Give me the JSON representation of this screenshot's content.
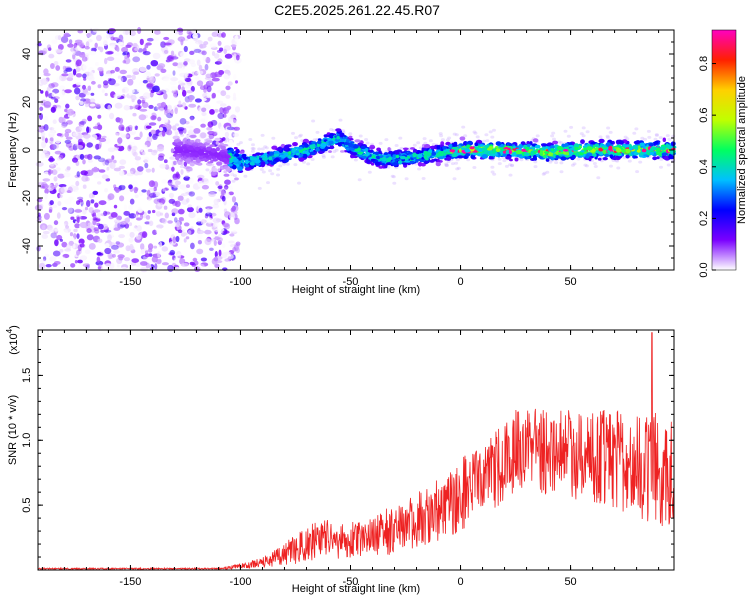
{
  "title": "C2E5.2025.261.22.45.R07",
  "chart_data": [
    {
      "type": "heatmap",
      "xlabel": "Height of straight line (km)",
      "ylabel": "Frequency (Hz)",
      "xlim": [
        -192,
        97
      ],
      "ylim": [
        -50,
        50
      ],
      "xticks": [
        -150,
        -100,
        -50,
        0,
        50
      ],
      "xtick_labels": [
        "-150",
        "-100",
        "-50",
        "0",
        "50"
      ],
      "yticks": [
        -40,
        -20,
        0,
        20,
        40
      ],
      "ytick_labels": [
        "-40",
        "-20",
        "0",
        "20",
        "40"
      ],
      "description_of_structure": {
        "noise_region_x": [
          -192,
          -103
        ],
        "signal_track": [
          {
            "x": -128,
            "f": 0
          },
          {
            "x": -110,
            "f": -2
          },
          {
            "x": -100,
            "f": -5
          },
          {
            "x": -85,
            "f": -3
          },
          {
            "x": -70,
            "f": 0
          },
          {
            "x": -55,
            "f": 5
          },
          {
            "x": -48,
            "f": 0
          },
          {
            "x": -35,
            "f": -4
          },
          {
            "x": -20,
            "f": -3
          },
          {
            "x": 0,
            "f": 0
          },
          {
            "x": 20,
            "f": 0
          },
          {
            "x": 40,
            "f": -1
          },
          {
            "x": 60,
            "f": 0
          },
          {
            "x": 97,
            "f": 0
          }
        ],
        "peak_amplitude_region_x": [
          -5,
          97
        ]
      },
      "colorbar": {
        "label": "Normalized spectral amplitude",
        "range": [
          0.0,
          0.93
        ],
        "ticks": [
          0.0,
          0.2,
          0.4,
          0.6,
          0.8
        ],
        "tick_labels": [
          "0.0",
          "0.2",
          "0.4",
          "0.6",
          "0.8"
        ],
        "colors": [
          "#ffffff",
          "#7a00ff",
          "#0000ff",
          "#00c0ff",
          "#00ff60",
          "#c0ff00",
          "#ffd000",
          "#ff2000",
          "#ff00c0"
        ]
      }
    },
    {
      "type": "line",
      "xlabel": "Height of straight line (km)",
      "ylabel": "SNR (10 * v/v)",
      "scale_label": "(x10",
      "scale_exponent": "4",
      "scale_close": ")",
      "xlim": [
        -192,
        97
      ],
      "ylim": [
        0,
        1.85
      ],
      "xticks": [
        -150,
        -100,
        -50,
        0,
        50
      ],
      "xtick_labels": [
        "-150",
        "-100",
        "-50",
        "0",
        "50"
      ],
      "yticks": [
        0.5,
        1.0,
        1.5
      ],
      "ytick_labels": [
        "0.5",
        "1.0",
        "1.5"
      ],
      "color": "#ee2222",
      "envelope": {
        "x": [
          -192,
          -110,
          -100,
          -90,
          -80,
          -70,
          -60,
          -50,
          -40,
          -30,
          -20,
          -10,
          0,
          10,
          20,
          30,
          40,
          50,
          60,
          70,
          80,
          90,
          97
        ],
        "mean": [
          0.01,
          0.01,
          0.03,
          0.06,
          0.12,
          0.2,
          0.25,
          0.22,
          0.25,
          0.32,
          0.38,
          0.45,
          0.58,
          0.7,
          0.85,
          0.95,
          0.92,
          0.9,
          0.88,
          0.85,
          0.8,
          0.78,
          0.75
        ],
        "spread": [
          0.006,
          0.006,
          0.02,
          0.04,
          0.09,
          0.14,
          0.16,
          0.15,
          0.15,
          0.2,
          0.22,
          0.25,
          0.28,
          0.3,
          0.32,
          0.35,
          0.35,
          0.35,
          0.36,
          0.38,
          0.4,
          0.45,
          0.4
        ]
      },
      "max_value": 1.83,
      "max_at_x": 87
    }
  ]
}
